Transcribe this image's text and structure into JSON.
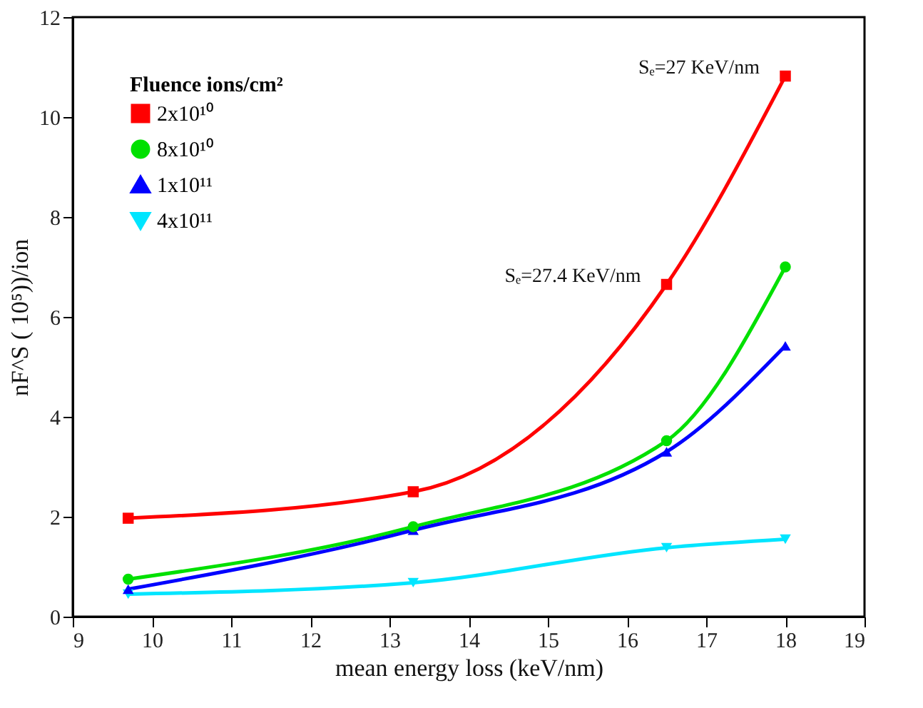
{
  "chart_data": {
    "type": "line",
    "xlabel": "mean energy loss (keV/nm)",
    "ylabel": "nF^S ( 10⁵))/ion",
    "legend_title": "Fluence ions/cm²",
    "x": [
      9.7,
      13.3,
      16.5,
      18.0
    ],
    "series": [
      {
        "name": "2x10¹⁰",
        "color": "#ff0000",
        "marker": "square",
        "values": [
          1.97,
          2.5,
          6.65,
          10.82
        ]
      },
      {
        "name": "8x10¹⁰",
        "color": "#00e000",
        "marker": "circle",
        "values": [
          0.75,
          1.8,
          3.52,
          7.0
        ]
      },
      {
        "name": "1x10¹¹",
        "color": "#0000ff",
        "marker": "triangle",
        "values": [
          0.55,
          1.73,
          3.3,
          5.42
        ]
      },
      {
        "name": "4x10¹¹",
        "color": "#00e5ff",
        "marker": "triangle-down",
        "values": [
          0.45,
          0.68,
          1.38,
          1.55
        ]
      }
    ],
    "annotations": [
      {
        "text": "Sₑ=27 KeV/nm",
        "x": 18.0,
        "y": 10.82
      },
      {
        "text": "Sₑ=27.4 KeV/nm",
        "x": 16.5,
        "y": 6.65
      }
    ],
    "xlim": [
      9,
      19
    ],
    "xticks": [
      9,
      10,
      11,
      12,
      13,
      14,
      15,
      16,
      17,
      18,
      19
    ],
    "ylim": [
      0,
      12
    ],
    "yticks": [
      0,
      2,
      4,
      6,
      8,
      10,
      12
    ],
    "grid": false,
    "legend": "top left",
    "line_style": "solid"
  }
}
